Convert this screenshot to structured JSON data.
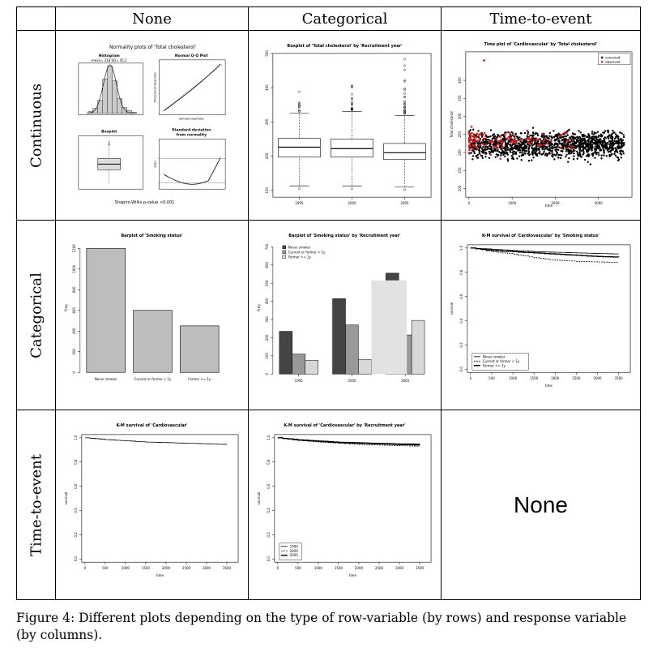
{
  "figure": {
    "col_headers": [
      "None",
      "Categorical",
      "Time-to-event"
    ],
    "row_headers": [
      "Continuous",
      "Categorical",
      "Time-to-event"
    ],
    "empty_cell_label": "None"
  },
  "caption": "Figure 4: Different plots depending on the type of row-variable (by rows) and response variable (by columns).",
  "panels": {
    "normality": {
      "title": "Normality plots of 'Total cholesterol'",
      "hist_title": "Histogram",
      "hist_subtitle": "mean= 218  SD= 45.2",
      "qq_title": "Normal Q-Q Plot",
      "qq_xlabel": "Sample Quantiles",
      "qq_ylabel": "Theoretical Quantiles",
      "box_title": "Boxplot",
      "sd_title1": "Standard deviation",
      "sd_title2": "from normality",
      "sd_ylabel": "Sdev",
      "footer": "Shapiro-Wilks p-value <0.001"
    },
    "boxplot_year": {
      "title": "Boxplot of 'Total cholesterol' by 'Recruitment year'",
      "categories": [
        "1995",
        "2000",
        "2005"
      ],
      "yticks": [
        "100",
        "200",
        "300",
        "400",
        "500"
      ]
    },
    "timeplot": {
      "title": "Time plot of 'Cardiovascular' by 'Total cholesterol'",
      "legend": [
        "censored",
        "observed"
      ],
      "xlabel": "time",
      "ylabel": "Total cholesterol",
      "xticks": [
        "0",
        "1000",
        "2000",
        "3000"
      ],
      "yticks": [
        "100",
        "150",
        "200",
        "250",
        "300",
        "350",
        "400"
      ]
    },
    "barplot_smoking": {
      "title": "Barplot of 'Smoking status'",
      "ylabel": "Freq",
      "categories": [
        "Never smoker",
        "Current or former < 1y",
        "Former >= 1y"
      ],
      "yticks": [
        "0",
        "200",
        "400",
        "600",
        "800",
        "1000",
        "1200"
      ]
    },
    "barplot_smoking_year": {
      "title": "Barplot of 'Smoking status' by 'Recruitment year'",
      "ylabel": "Freq",
      "legend": [
        "Never smoker",
        "Current or former < 1y",
        "Former >= 1y"
      ],
      "categories": [
        "1995",
        "2000",
        "2005"
      ],
      "yticks": [
        "0",
        "100",
        "200",
        "300",
        "400",
        "500",
        "600",
        "700"
      ]
    },
    "km_smoking": {
      "title": "K-M survival of 'Cardiovascular' by 'Smoking status'",
      "xlabel": "time",
      "ylabel": "survival",
      "legend": [
        "Never smoker",
        "Current or former < 1y",
        "Former >= 1y"
      ],
      "xticks": [
        "0",
        "500",
        "1000",
        "1500",
        "2000",
        "2500",
        "3000",
        "3500"
      ],
      "yticks": [
        "0.0",
        "0.2",
        "0.4",
        "0.6",
        "0.8",
        "1.0"
      ]
    },
    "km_all": {
      "title": "K-M survival of 'Cardiovascular'",
      "xlabel": "time",
      "ylabel": "survival",
      "xticks": [
        "0",
        "500",
        "1000",
        "1500",
        "2000",
        "2500",
        "3000",
        "3500"
      ],
      "yticks": [
        "0.0",
        "0.2",
        "0.4",
        "0.6",
        "0.8",
        "1.0"
      ]
    },
    "km_year": {
      "title": "K-M survival of 'Cardiovascular' by 'Recruitment year'",
      "xlabel": "time",
      "ylabel": "survival",
      "legend": [
        "1995",
        "2000",
        "2005"
      ],
      "xticks": [
        "0",
        "500",
        "1000",
        "1500",
        "2000",
        "2500",
        "3000",
        "3500"
      ],
      "yticks": [
        "0.0",
        "0.2",
        "0.4",
        "0.6",
        "0.8",
        "1.0"
      ]
    }
  },
  "chart_data": [
    {
      "type": "bar",
      "title": "Barplot of 'Smoking status'",
      "categories": [
        "Never smoker",
        "Current or former < 1y",
        "Former >= 1y"
      ],
      "values": [
        1200,
        600,
        450
      ],
      "ylabel": "Freq",
      "ylim": [
        0,
        1250
      ]
    },
    {
      "type": "bar",
      "title": "Barplot of 'Smoking status' by 'Recruitment year'",
      "categories": [
        "1995",
        "2000",
        "2005"
      ],
      "series": [
        {
          "name": "Never smoker",
          "values": [
            235,
            415,
            555
          ]
        },
        {
          "name": "Current or former < 1y",
          "values": [
            110,
            270,
            215
          ]
        },
        {
          "name": "Former >= 1y",
          "values": [
            75,
            80,
            295
          ]
        }
      ],
      "ylabel": "Freq",
      "ylim": [
        0,
        720
      ]
    },
    {
      "type": "line",
      "title": "K-M survival of 'Cardiovascular' by 'Smoking status'",
      "x": [
        0,
        500,
        1000,
        1500,
        2000,
        2500,
        3000,
        3500
      ],
      "series": [
        {
          "name": "Never smoker",
          "values": [
            1.0,
            0.99,
            0.98,
            0.97,
            0.965,
            0.96,
            0.955,
            0.95
          ]
        },
        {
          "name": "Current or former < 1y",
          "values": [
            1.0,
            0.97,
            0.95,
            0.92,
            0.9,
            0.89,
            0.885,
            0.88
          ]
        },
        {
          "name": "Former >= 1y",
          "values": [
            1.0,
            0.98,
            0.97,
            0.96,
            0.95,
            0.94,
            0.93,
            0.925
          ]
        }
      ],
      "xlabel": "time",
      "ylabel": "survival",
      "ylim": [
        0,
        1
      ]
    },
    {
      "type": "line",
      "title": "K-M survival of 'Cardiovascular'",
      "x": [
        0,
        500,
        1000,
        1500,
        2000,
        2500,
        3000,
        3500
      ],
      "series": [
        {
          "values": [
            1.0,
            0.985,
            0.975,
            0.965,
            0.96,
            0.955,
            0.95,
            0.945
          ]
        }
      ],
      "xlabel": "time",
      "ylabel": "survival",
      "ylim": [
        0,
        1
      ]
    },
    {
      "type": "line",
      "title": "K-M survival of 'Cardiovascular' by 'Recruitment year'",
      "x": [
        0,
        500,
        1000,
        1500,
        2000,
        2500,
        3000,
        3500
      ],
      "series": [
        {
          "name": "1995",
          "values": [
            1.0,
            0.985,
            0.975,
            0.965,
            0.96,
            0.955,
            0.95,
            0.95
          ]
        },
        {
          "name": "2000",
          "values": [
            1.0,
            0.98,
            0.965,
            0.955,
            0.945,
            0.94,
            0.935,
            0.93
          ]
        },
        {
          "name": "2005",
          "values": [
            1.0,
            0.98,
            0.97,
            0.96,
            0.955,
            0.95,
            0.945,
            0.94
          ]
        }
      ],
      "xlabel": "time",
      "ylabel": "survival",
      "ylim": [
        0,
        1
      ]
    },
    {
      "type": "bar",
      "title": "Boxplot of 'Total cholesterol' by 'Recruitment year'",
      "categories": [
        "1995",
        "2000",
        "2005"
      ],
      "series": [
        {
          "name": "median",
          "values": [
            226,
            222,
            210
          ]
        },
        {
          "name": "q1",
          "values": [
            197,
            197,
            190
          ]
        },
        {
          "name": "q3",
          "values": [
            252,
            250,
            237
          ]
        },
        {
          "name": "whisker_low",
          "values": [
            113,
            113,
            110
          ]
        },
        {
          "name": "whisker_high",
          "values": [
            325,
            330,
            318
          ]
        }
      ],
      "ylim": [
        80,
        500
      ]
    }
  ]
}
